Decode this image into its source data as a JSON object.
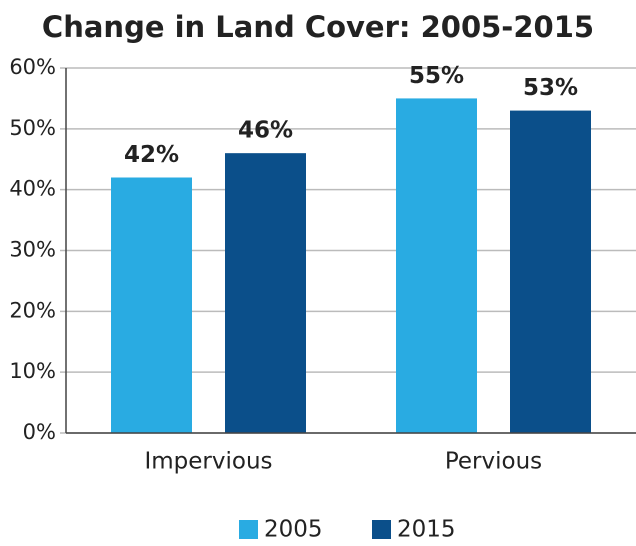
{
  "chart_data": {
    "type": "bar",
    "title": "Change in Land Cover: 2005-2015",
    "categories": [
      "Impervious",
      "Pervious"
    ],
    "series": [
      {
        "name": "2005",
        "color": "#29abe2",
        "values": [
          42,
          55
        ],
        "value_labels": [
          "42%",
          "55%"
        ]
      },
      {
        "name": "2015",
        "color": "#0b4f8a",
        "values": [
          46,
          53
        ],
        "value_labels": [
          "46%",
          "53%"
        ]
      }
    ],
    "ylim": [
      0,
      60
    ],
    "yticks": [
      {
        "value": 0,
        "label": "0%"
      },
      {
        "value": 10,
        "label": "10%"
      },
      {
        "value": 20,
        "label": "20%"
      },
      {
        "value": 30,
        "label": "30%"
      },
      {
        "value": 40,
        "label": "40%"
      },
      {
        "value": 50,
        "label": "50%"
      },
      {
        "value": 60,
        "label": "60%"
      }
    ],
    "grid": true,
    "legend": "bottom"
  }
}
